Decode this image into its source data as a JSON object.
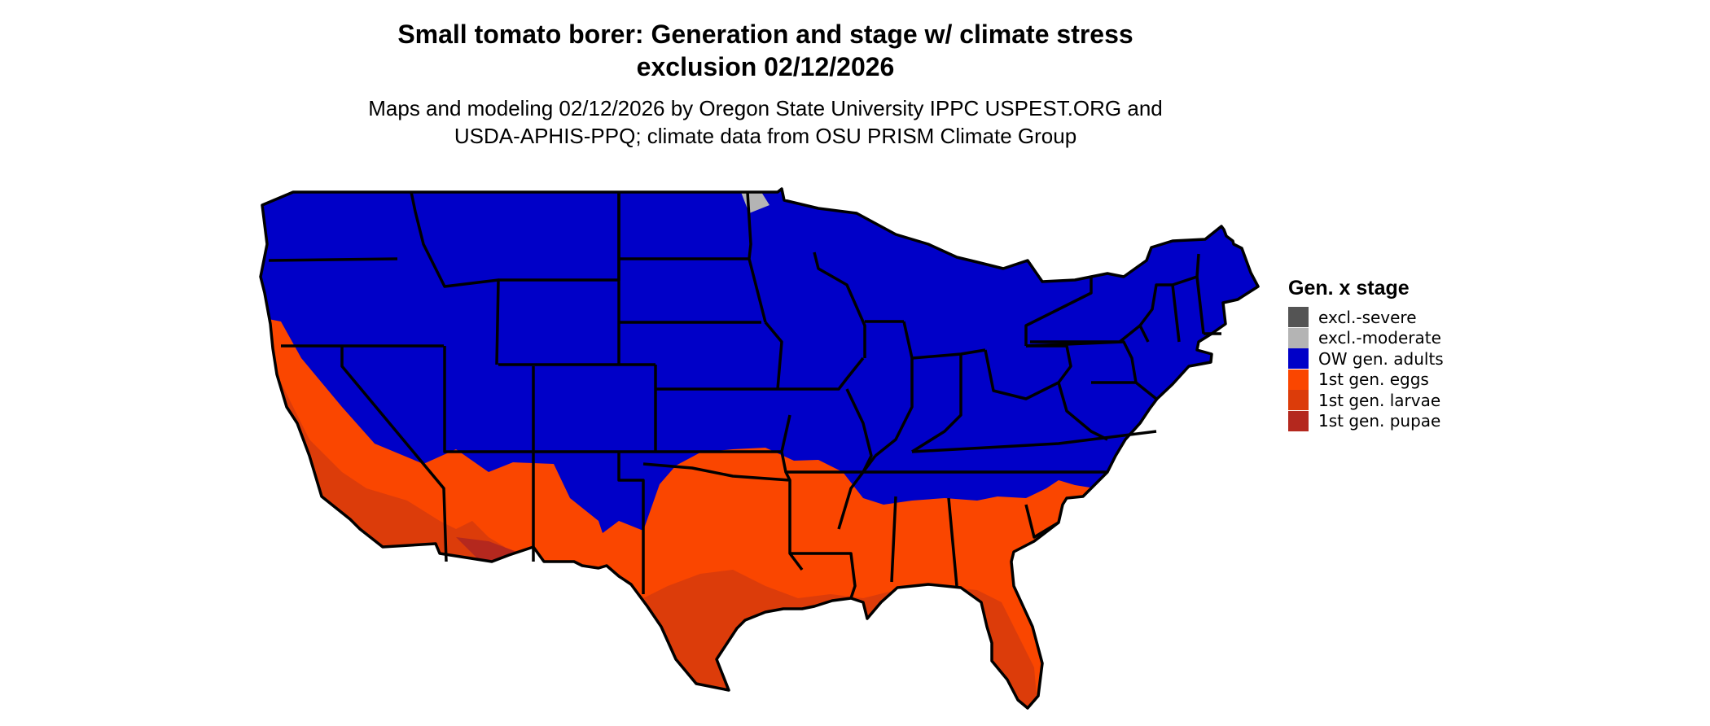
{
  "title": {
    "line1": "Small tomato borer: Generation and stage w/ climate stress",
    "line2": "exclusion 02/12/2026"
  },
  "subtitle": {
    "line1": "Maps and modeling 02/12/2026 by Oregon State University IPPC USPEST.ORG and",
    "line2": "USDA-APHIS-PPQ; climate data from OSU PRISM Climate Group"
  },
  "legend": {
    "title": "Gen. x stage",
    "items": [
      {
        "label": "excl.-severe",
        "color": "#545454"
      },
      {
        "label": "excl.-moderate",
        "color": "#b4b4b4"
      },
      {
        "label": "OW gen. adults",
        "color": "#0000c8"
      },
      {
        "label": "1st gen. eggs",
        "color": "#fa4600"
      },
      {
        "label": "1st gen. larvae",
        "color": "#dc3c0a"
      },
      {
        "label": "1st gen. pupae",
        "color": "#b4281e"
      }
    ]
  }
}
